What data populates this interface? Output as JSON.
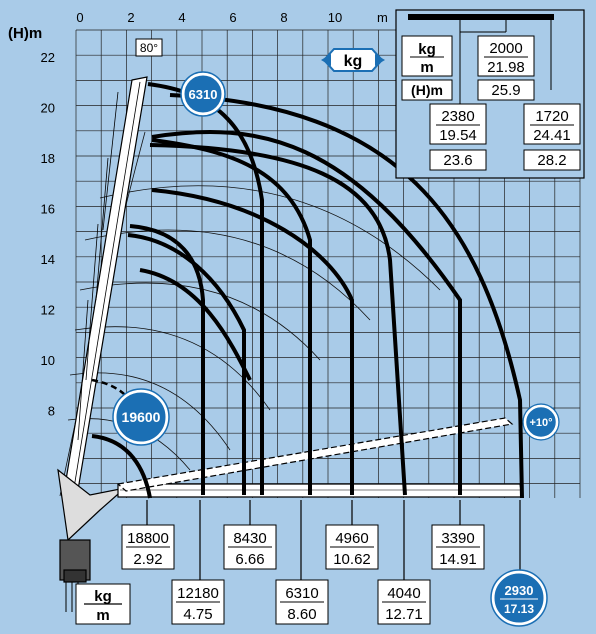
{
  "axes": {
    "y_label": "(H)m",
    "x_unit": "m",
    "x_ticks": [
      "0",
      "2",
      "4",
      "6",
      "8",
      "10"
    ],
    "y_ticks": [
      "22",
      "20",
      "18",
      "16",
      "14",
      "12",
      "10",
      "8"
    ]
  },
  "angle_label": "80°",
  "kg_label": "kg",
  "plus_angle_label": "+10°",
  "badges": {
    "top": "6310",
    "left": "19600",
    "bottom_line1": "2930",
    "bottom_line2": "17.13"
  },
  "legend": {
    "kg": "kg",
    "m": "m"
  },
  "inset": {
    "header_kg": "kg",
    "header_m": "m",
    "header_h": "(H)m",
    "cells": [
      {
        "kg": "2000",
        "m": "21.98",
        "h": "25.9"
      },
      {
        "kg": "2380",
        "m": "19.54",
        "h": "23.6"
      },
      {
        "kg": "1720",
        "m": "24.41",
        "h": "28.2"
      }
    ]
  },
  "load_labels": [
    {
      "kg": "18800",
      "m": "2.92"
    },
    {
      "kg": "12180",
      "m": "4.75"
    },
    {
      "kg": "8430",
      "m": "6.66"
    },
    {
      "kg": "6310",
      "m": "8.60"
    },
    {
      "kg": "4960",
      "m": "10.62"
    },
    {
      "kg": "4040",
      "m": "12.71"
    },
    {
      "kg": "3390",
      "m": "14.91"
    }
  ],
  "colors": {
    "background": "#a9cbe8",
    "grid": "#1a1a1a",
    "badge": "#1b6fb4",
    "ink": "#000000"
  }
}
